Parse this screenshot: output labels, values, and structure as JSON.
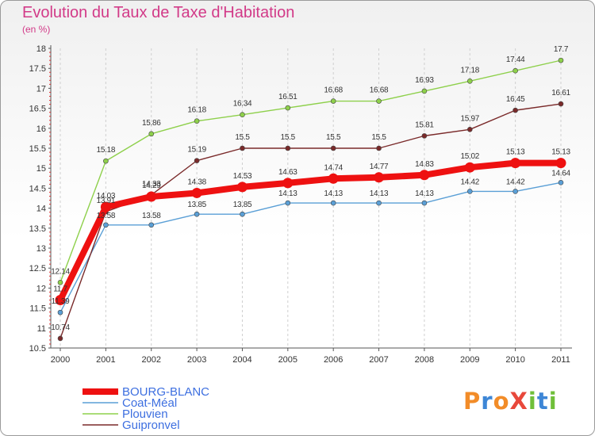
{
  "title": "Evolution du Taux de Taxe d'Habitation",
  "subtitle": "(en %)",
  "logo": {
    "text": "ProXiti",
    "letters": [
      "P",
      "r",
      "o",
      "X",
      "i",
      "t",
      "i"
    ]
  },
  "chart_data": {
    "type": "line",
    "x": [
      "2000",
      "2001",
      "2002",
      "2003",
      "2004",
      "2005",
      "2006",
      "2007",
      "2008",
      "2009",
      "2010",
      "2011"
    ],
    "ylim": [
      10.5,
      18
    ],
    "yticks": [
      10.5,
      11,
      11.5,
      12,
      12.5,
      13,
      13.5,
      14,
      14.5,
      15,
      15.5,
      16,
      16.5,
      17,
      17.5,
      18
    ],
    "ytick_labels": [
      "10.5",
      "11",
      "11.5",
      "12",
      "12.5",
      "13",
      "13.5",
      "14",
      "14.5",
      "15",
      "15.5",
      "16",
      "16.5",
      "17",
      "17.5",
      "18"
    ],
    "grid": "vertical",
    "legend": "bottom-left",
    "series": [
      {
        "name": "BOURG-BLANC",
        "color": "#ee1111",
        "values": [
          11.7,
          14.03,
          14.29,
          14.38,
          14.53,
          14.63,
          14.74,
          14.77,
          14.83,
          15.02,
          15.13,
          15.13
        ],
        "labels": [
          "11.7",
          "14.03",
          "14.29",
          "14.38",
          "14.53",
          "14.63",
          "14.74",
          "14.77",
          "14.83",
          "15.02",
          "15.13",
          "15.13"
        ]
      },
      {
        "name": "Coat-Méal",
        "color": "#5a9fd6",
        "values": [
          11.39,
          13.58,
          13.58,
          13.85,
          13.85,
          14.13,
          14.13,
          14.13,
          14.13,
          14.42,
          14.42,
          14.64
        ],
        "labels": [
          "11.39",
          "13.58",
          "13.58",
          "13.85",
          "13.85",
          "14.13",
          "14.13",
          "14.13",
          "14.13",
          "14.42",
          "14.42",
          "14.64"
        ]
      },
      {
        "name": "Plouvien",
        "color": "#8ed04b",
        "values": [
          12.14,
          15.18,
          15.86,
          16.18,
          16.34,
          16.51,
          16.68,
          16.68,
          16.93,
          17.18,
          17.44,
          17.7
        ],
        "labels": [
          "12.14",
          "15.18",
          "15.86",
          "16.18",
          "16.34",
          "16.51",
          "16.68",
          "16.68",
          "16.93",
          "17.18",
          "17.44",
          "17.7"
        ]
      },
      {
        "name": "Guipronvel",
        "color": "#7a2a2a",
        "values": [
          10.74,
          13.91,
          14.33,
          15.19,
          15.5,
          15.5,
          15.5,
          15.5,
          15.81,
          15.97,
          16.45,
          16.61
        ],
        "labels": [
          "10.74",
          "13.91",
          "14.33",
          "15.19",
          "15.5",
          "15.5",
          "15.5",
          "15.5",
          "15.81",
          "15.97",
          "16.45",
          "16.61"
        ]
      }
    ]
  }
}
